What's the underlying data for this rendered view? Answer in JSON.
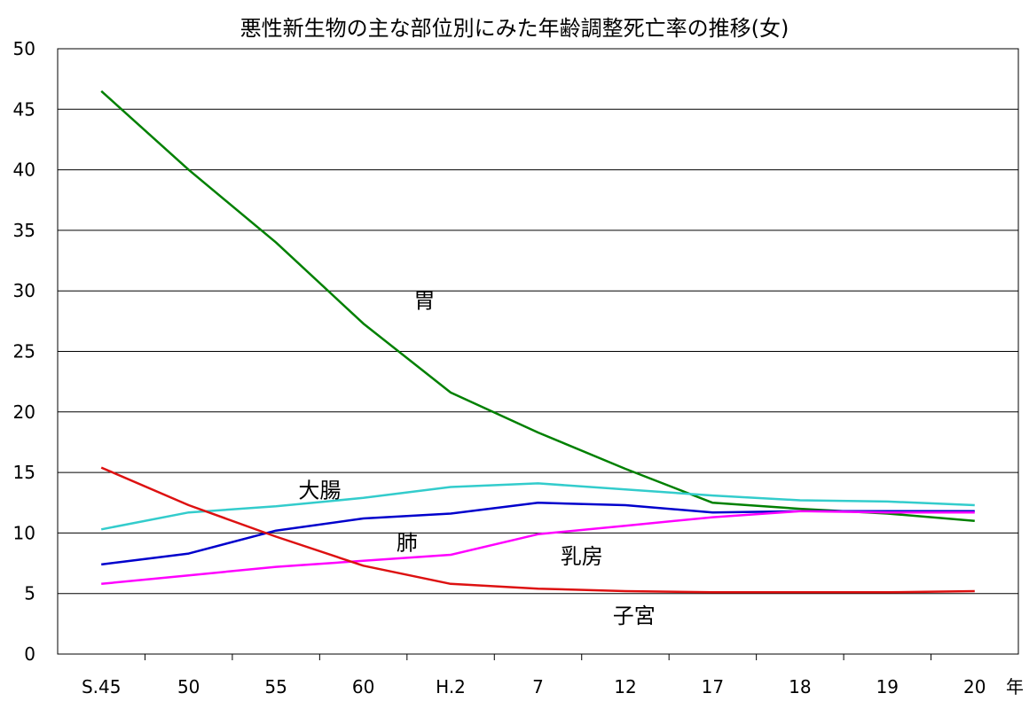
{
  "chart_data": {
    "type": "line",
    "title": "悪性新生物の主な部位別にみた年齢調整死亡率の推移(女)",
    "xlabel": "年",
    "ylabel": "",
    "categories": [
      "S.45",
      "50",
      "55",
      "60",
      "H.2",
      "7",
      "12",
      "17",
      "18",
      "19",
      "20"
    ],
    "ylim": [
      0,
      50
    ],
    "yticks": [
      0,
      5,
      10,
      15,
      20,
      25,
      30,
      35,
      40,
      45,
      50
    ],
    "grid": true,
    "series": [
      {
        "name": "胃",
        "color": "#008000",
        "values": [
          46.5,
          40.0,
          34.0,
          27.3,
          21.6,
          18.3,
          15.3,
          12.5,
          12.0,
          11.6,
          11.0
        ]
      },
      {
        "name": "大腸",
        "color": "#33CCCC",
        "values": [
          10.3,
          11.7,
          12.2,
          12.9,
          13.8,
          14.1,
          13.6,
          13.1,
          12.7,
          12.6,
          12.3
        ]
      },
      {
        "name": "肺",
        "color": "#0000CC",
        "values": [
          7.4,
          8.3,
          10.2,
          11.2,
          11.6,
          12.5,
          12.3,
          11.7,
          11.8,
          11.8,
          11.8
        ]
      },
      {
        "name": "乳房",
        "color": "#FF00FF",
        "values": [
          5.8,
          6.5,
          7.2,
          7.7,
          8.2,
          9.9,
          10.6,
          11.3,
          11.8,
          11.7,
          11.7
        ]
      },
      {
        "name": "子宮",
        "color": "#DD1111",
        "values": [
          15.4,
          12.3,
          9.7,
          7.3,
          5.8,
          5.4,
          5.2,
          5.1,
          5.1,
          5.1,
          5.2
        ]
      }
    ]
  }
}
